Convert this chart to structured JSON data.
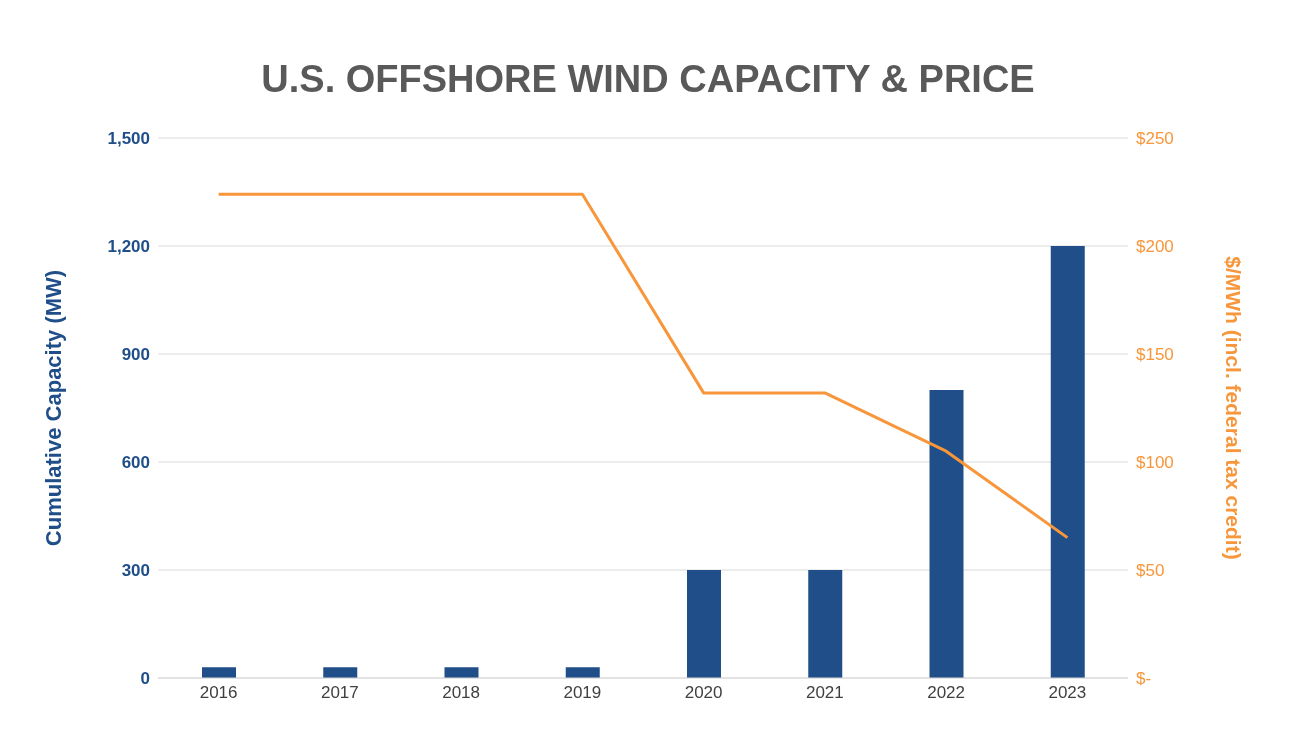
{
  "chart_data": {
    "type": "bar",
    "title": "U.S. OFFSHORE WIND CAPACITY & PRICE",
    "ylabel": "Cumulative Capacity (MW)",
    "y2label": "$/MWh (incl. federal tax credit)",
    "categories": [
      "2016",
      "2017",
      "2018",
      "2019",
      "2020",
      "2021",
      "2022",
      "2023"
    ],
    "series": [
      {
        "color": "#1f4e89",
        "values": [
          30,
          30,
          30,
          30,
          300,
          300,
          800,
          1200
        ]
      },
      {
        "type": "line",
        "axis": "y2",
        "color": "#f7963a",
        "values": [
          224,
          224,
          224,
          224,
          132,
          132,
          105,
          65
        ]
      }
    ],
    "ylim": [
      0,
      1500
    ],
    "yticks": [
      {
        "value": 0,
        "label": "0"
      },
      {
        "value": 300,
        "label": "300"
      },
      {
        "value": 600,
        "label": "600"
      },
      {
        "value": 900,
        "label": "900"
      },
      {
        "value": 1200,
        "label": "1,200"
      },
      {
        "value": 1500,
        "label": "1,500"
      }
    ],
    "y2lim": [
      0,
      250
    ],
    "y2ticks": [
      {
        "value": 0,
        "label": "$-"
      },
      {
        "value": 50,
        "label": "$50"
      },
      {
        "value": 100,
        "label": "$100"
      },
      {
        "value": 150,
        "label": "$150"
      },
      {
        "value": 200,
        "label": "$200"
      },
      {
        "value": 250,
        "label": "$250"
      }
    ],
    "grid": "y",
    "marker": "none"
  }
}
